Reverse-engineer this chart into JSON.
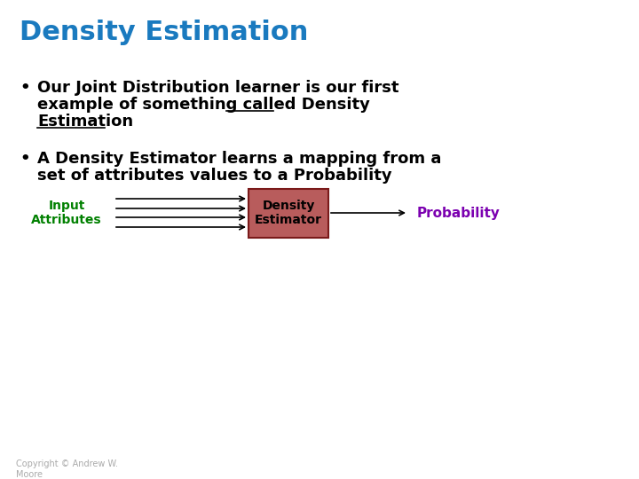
{
  "title": "Density Estimation",
  "title_color": "#1a7abf",
  "title_fontsize": 22,
  "title_fontweight": "bold",
  "background_color": "#ffffff",
  "bullet1_line1": "Our Joint Distribution learner is our first",
  "bullet1_line2": "example of something called Density",
  "bullet1_line3": "Estimation",
  "bullet2_line1": "A Density Estimator learns a mapping from a",
  "bullet2_line2": "set of attributes values to a Probability",
  "bullet_color": "#000000",
  "bullet_fontsize": 13,
  "bullet_fontweight": "bold",
  "diagram_input_label": "Input\nAttributes",
  "diagram_input_color": "#008000",
  "diagram_box_label": "Density\nEstimator",
  "diagram_box_facecolor": "#b85c5c",
  "diagram_box_edgecolor": "#7a1a1a",
  "diagram_output_label": "Probability",
  "diagram_output_color": "#7b00b0",
  "diagram_arrow_color": "#000000",
  "copyright_text": "Copyright © Andrew W.\nMoore",
  "copyright_fontsize": 7,
  "copyright_color": "#aaaaaa"
}
